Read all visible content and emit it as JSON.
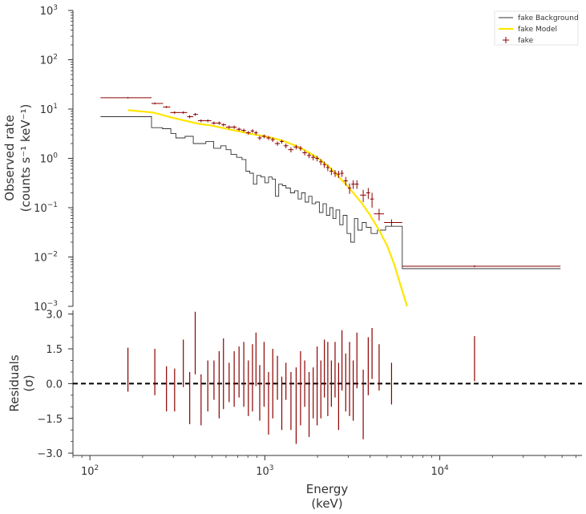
{
  "chart_data": [
    {
      "type": "line",
      "panel": "top",
      "ylabel_line1": "Observed rate",
      "ylabel_line2": "(counts s⁻¹ keV⁻¹)",
      "xscale": "log",
      "yscale": "log",
      "xlim": [
        80,
        65000
      ],
      "ylim": [
        0.001,
        1000
      ],
      "yticks": [
        {
          "value": 0.001,
          "base": "10",
          "exp": "−3"
        },
        {
          "value": 0.01,
          "base": "10",
          "exp": "−2"
        },
        {
          "value": 0.1,
          "base": "10",
          "exp": "−1"
        },
        {
          "value": 1,
          "base": "10",
          "exp": "0"
        },
        {
          "value": 10,
          "base": "10",
          "exp": "1"
        },
        {
          "value": 100,
          "base": "10",
          "exp": "2"
        },
        {
          "value": 1000,
          "base": "10",
          "exp": "3"
        }
      ],
      "legend": {
        "placement": "top-right",
        "entries": [
          {
            "label": "fake Background",
            "color": "#333333",
            "marker": "line-thin"
          },
          {
            "label": "fake Model",
            "color": "#ffe600",
            "marker": "line-thick"
          },
          {
            "label": "fake",
            "color": "#8b0000",
            "marker": "cross"
          }
        ]
      },
      "series": [
        {
          "name": "fake Background",
          "kind": "step",
          "color": "#333333",
          "bins": [
            [
              115,
              225,
              7.0
            ],
            [
              225,
              260,
              4.2
            ],
            [
              260,
              290,
              4.0
            ],
            [
              290,
              310,
              3.2
            ],
            [
              310,
              350,
              2.6
            ],
            [
              350,
              390,
              2.8
            ],
            [
              390,
              420,
              2.0
            ],
            [
              420,
              460,
              2.0
            ],
            [
              460,
              510,
              2.2
            ],
            [
              510,
              560,
              1.6
            ],
            [
              560,
              600,
              1.8
            ],
            [
              600,
              640,
              1.5
            ],
            [
              640,
              690,
              1.2
            ],
            [
              690,
              740,
              1.05
            ],
            [
              740,
              780,
              0.95
            ],
            [
              780,
              820,
              0.55
            ],
            [
              820,
              860,
              0.5
            ],
            [
              860,
              900,
              0.3
            ],
            [
              900,
              950,
              0.45
            ],
            [
              950,
              1000,
              0.42
            ],
            [
              1000,
              1050,
              0.32
            ],
            [
              1050,
              1100,
              0.42
            ],
            [
              1100,
              1150,
              0.38
            ],
            [
              1150,
              1200,
              0.17
            ],
            [
              1200,
              1260,
              0.3
            ],
            [
              1260,
              1320,
              0.28
            ],
            [
              1320,
              1400,
              0.25
            ],
            [
              1400,
              1480,
              0.2
            ],
            [
              1480,
              1550,
              0.22
            ],
            [
              1550,
              1620,
              0.15
            ],
            [
              1620,
              1700,
              0.2
            ],
            [
              1700,
              1780,
              0.13
            ],
            [
              1780,
              1860,
              0.17
            ],
            [
              1860,
              1950,
              0.12
            ],
            [
              1950,
              2050,
              0.13
            ],
            [
              2050,
              2150,
              0.08
            ],
            [
              2150,
              2250,
              0.12
            ],
            [
              2250,
              2350,
              0.07
            ],
            [
              2350,
              2450,
              0.1
            ],
            [
              2450,
              2550,
              0.06
            ],
            [
              2550,
              2680,
              0.09
            ],
            [
              2680,
              2800,
              0.045
            ],
            [
              2800,
              2950,
              0.07
            ],
            [
              2950,
              3100,
              0.03
            ],
            [
              3100,
              3250,
              0.02
            ],
            [
              3250,
              3400,
              0.06
            ],
            [
              3400,
              3600,
              0.035
            ],
            [
              3600,
              3800,
              0.05
            ],
            [
              3800,
              4050,
              0.04
            ],
            [
              4050,
              4400,
              0.03
            ],
            [
              4400,
              4900,
              0.035
            ],
            [
              4900,
              6100,
              0.042
            ],
            [
              6100,
              49000,
              0.0058
            ]
          ]
        },
        {
          "name": "fake Model",
          "kind": "line",
          "color": "#ffe600",
          "x": [
            165,
            230,
            290,
            350,
            420,
            500,
            600,
            720,
            850,
            1000,
            1150,
            1300,
            1500,
            1700,
            1900,
            2100,
            2350,
            2600,
            2900,
            3200,
            3600,
            4000,
            4500,
            5000,
            5500,
            6000,
            6500
          ],
          "y": [
            9.5,
            8.5,
            6.8,
            5.8,
            5.0,
            4.6,
            4.0,
            3.5,
            3.1,
            2.8,
            2.5,
            2.2,
            1.8,
            1.45,
            1.15,
            0.9,
            0.65,
            0.45,
            0.3,
            0.2,
            0.12,
            0.07,
            0.035,
            0.017,
            0.007,
            0.0025,
            0.001
          ]
        },
        {
          "name": "fake",
          "kind": "errorbar",
          "color": "#8b0000",
          "points": [
            [
              115,
              165,
              225,
              17.0,
              0.6
            ],
            [
              225,
              235,
              262,
              13.0,
              0.6
            ],
            [
              262,
              274,
              288,
              11.0,
              0.5
            ],
            [
              288,
              305,
              330,
              8.5,
              0.5
            ],
            [
              330,
              342,
              360,
              8.5,
              0.5
            ],
            [
              360,
              372,
              390,
              7.0,
              0.5
            ],
            [
              390,
              400,
              415,
              7.8,
              0.5
            ],
            [
              415,
              432,
              455,
              5.8,
              0.4
            ],
            [
              455,
              472,
              495,
              5.8,
              0.4
            ],
            [
              495,
              512,
              530,
              5.2,
              0.4
            ],
            [
              530,
              548,
              565,
              5.2,
              0.4
            ],
            [
              565,
              580,
              600,
              4.8,
              0.35
            ],
            [
              600,
              625,
              650,
              4.3,
              0.35
            ],
            [
              650,
              668,
              690,
              4.3,
              0.35
            ],
            [
              690,
              712,
              735,
              3.9,
              0.3
            ],
            [
              735,
              758,
              780,
              3.7,
              0.3
            ],
            [
              780,
              805,
              830,
              3.3,
              0.3
            ],
            [
              830,
              850,
              870,
              3.6,
              0.3
            ],
            [
              870,
              890,
              910,
              3.3,
              0.3
            ],
            [
              910,
              935,
              960,
              2.6,
              0.25
            ],
            [
              960,
              990,
              1020,
              2.8,
              0.25
            ],
            [
              1020,
              1050,
              1080,
              2.6,
              0.25
            ],
            [
              1080,
              1110,
              1140,
              2.4,
              0.25
            ],
            [
              1140,
              1180,
              1220,
              2.0,
              0.2
            ],
            [
              1220,
              1250,
              1280,
              2.2,
              0.2
            ],
            [
              1280,
              1320,
              1360,
              1.8,
              0.2
            ],
            [
              1360,
              1410,
              1460,
              1.5,
              0.18
            ],
            [
              1460,
              1510,
              1560,
              1.7,
              0.18
            ],
            [
              1560,
              1600,
              1640,
              1.6,
              0.18
            ],
            [
              1640,
              1690,
              1740,
              1.3,
              0.15
            ],
            [
              1740,
              1790,
              1840,
              1.15,
              0.14
            ],
            [
              1840,
              1890,
              1940,
              1.05,
              0.14
            ],
            [
              1940,
              1990,
              2040,
              1.0,
              0.13
            ],
            [
              2040,
              2090,
              2140,
              0.85,
              0.12
            ],
            [
              2140,
              2190,
              2240,
              0.75,
              0.11
            ],
            [
              2240,
              2290,
              2340,
              0.65,
              0.1
            ],
            [
              2340,
              2400,
              2460,
              0.55,
              0.09
            ],
            [
              2460,
              2520,
              2580,
              0.5,
              0.08
            ],
            [
              2580,
              2640,
              2700,
              0.48,
              0.08
            ],
            [
              2700,
              2760,
              2820,
              0.5,
              0.08
            ],
            [
              2820,
              2900,
              2980,
              0.35,
              0.07
            ],
            [
              2980,
              3050,
              3120,
              0.25,
              0.06
            ],
            [
              3120,
              3200,
              3280,
              0.3,
              0.06
            ],
            [
              3280,
              3360,
              3440,
              0.3,
              0.06
            ],
            [
              3500,
              3650,
              3800,
              0.18,
              0.05
            ],
            [
              3800,
              3900,
              4000,
              0.2,
              0.05
            ],
            [
              4000,
              4100,
              4200,
              0.15,
              0.05
            ],
            [
              4200,
              4500,
              4800,
              0.075,
              0.02
            ],
            [
              4800,
              5300,
              6100,
              0.05,
              0.008
            ],
            [
              6100,
              15800,
              49000,
              0.0065,
              0.0003
            ]
          ]
        }
      ]
    },
    {
      "type": "scatter",
      "panel": "bottom",
      "ylabel_line1": "Residuals",
      "ylabel_line2": "(σ)",
      "xlabel_line1": "Energy",
      "xlabel_line2": "(keV)",
      "xscale": "log",
      "xlim": [
        80,
        65000
      ],
      "ylim": [
        -3.1,
        3.3
      ],
      "yticks": [
        "3.0",
        "1.5",
        "0.0",
        "−1.5",
        "−3.0"
      ],
      "ytick_values": [
        3.0,
        1.5,
        0.0,
        -1.5,
        -3.0
      ],
      "xticks": [
        {
          "value": 100,
          "base": "10",
          "exp": "2"
        },
        {
          "value": 1000,
          "base": "10",
          "exp": "3"
        },
        {
          "value": 10000,
          "base": "10",
          "exp": "4"
        }
      ],
      "reference_line": {
        "y": 0.0,
        "style": "dashed",
        "color": "#000000"
      },
      "series": [
        {
          "name": "residuals",
          "color": "#8b0000",
          "points": [
            [
              165,
              -0.35,
              1.55
            ],
            [
              235,
              -0.5,
              1.5
            ],
            [
              274,
              -1.2,
              0.75
            ],
            [
              305,
              -1.2,
              0.65
            ],
            [
              342,
              -0.15,
              1.9
            ],
            [
              372,
              -1.75,
              0.5
            ],
            [
              400,
              0.4,
              3.1
            ],
            [
              432,
              -1.8,
              0.4
            ],
            [
              472,
              -1.2,
              1.0
            ],
            [
              512,
              -0.7,
              1.0
            ],
            [
              548,
              -1.5,
              1.4
            ],
            [
              580,
              -1.1,
              1.95
            ],
            [
              625,
              -0.8,
              0.9
            ],
            [
              668,
              -1.0,
              1.4
            ],
            [
              712,
              -0.6,
              1.6
            ],
            [
              758,
              -1.0,
              1.8
            ],
            [
              805,
              -1.4,
              1.0
            ],
            [
              850,
              -1.2,
              1.7
            ],
            [
              890,
              -0.1,
              2.2
            ],
            [
              935,
              -1.6,
              0.8
            ],
            [
              990,
              -1.0,
              1.8
            ],
            [
              1050,
              -2.2,
              0.5
            ],
            [
              1110,
              -1.5,
              1.5
            ],
            [
              1180,
              -0.7,
              1.2
            ],
            [
              1250,
              -2.0,
              0.3
            ],
            [
              1320,
              -0.7,
              0.9
            ],
            [
              1410,
              -2.0,
              0.5
            ],
            [
              1510,
              -2.6,
              0.7
            ],
            [
              1600,
              -1.8,
              1.4
            ],
            [
              1690,
              -1.0,
              1.0
            ],
            [
              1790,
              -2.3,
              0.5
            ],
            [
              1890,
              -1.5,
              0.7
            ],
            [
              1990,
              -1.8,
              1.6
            ],
            [
              2090,
              -1.5,
              1.0
            ],
            [
              2190,
              -0.6,
              1.9
            ],
            [
              2290,
              -1.4,
              1.8
            ],
            [
              2400,
              -1.0,
              1.0
            ],
            [
              2520,
              -0.6,
              1.8
            ],
            [
              2640,
              -2.0,
              0.9
            ],
            [
              2760,
              -0.3,
              2.3
            ],
            [
              2900,
              -1.2,
              1.3
            ],
            [
              3050,
              -1.4,
              1.8
            ],
            [
              3200,
              -1.6,
              1.0
            ],
            [
              3360,
              -0.2,
              2.2
            ],
            [
              3650,
              -2.4,
              0.6
            ],
            [
              3900,
              -0.5,
              2.0
            ],
            [
              4100,
              0.2,
              2.4
            ],
            [
              4500,
              -0.3,
              1.7
            ],
            [
              5300,
              -0.9,
              0.9
            ],
            [
              15800,
              0.1,
              2.05
            ]
          ]
        }
      ]
    }
  ]
}
